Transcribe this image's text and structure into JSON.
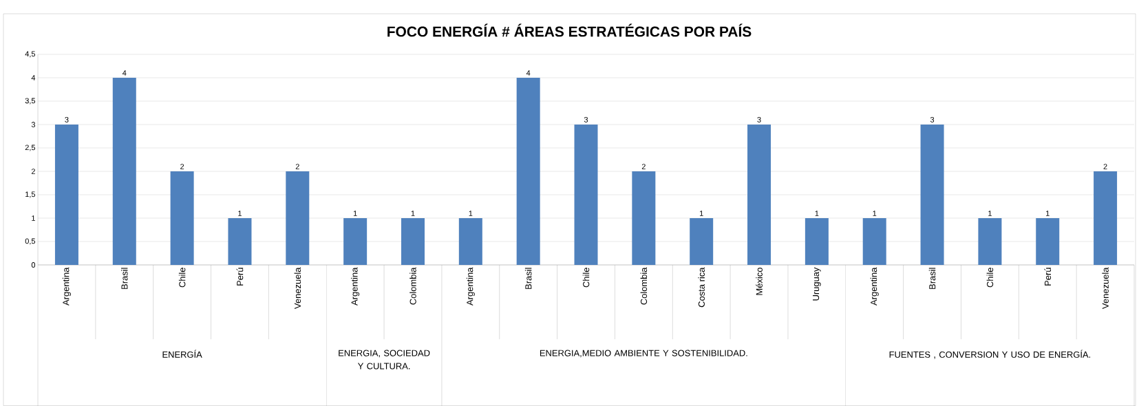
{
  "chart_data": {
    "type": "bar",
    "title": "FOCO ENERGÍA #  ÁREAS ESTRATÉGICAS POR PAÍS",
    "categories": [
      "Argentina",
      "Brasil",
      "Chile",
      "Perú",
      "Venezuela",
      "Argentina",
      "Colombia",
      "Argentina",
      "Brasil",
      "Chile",
      "Colombia",
      "Costa rica",
      "México",
      "Uruguay",
      "Argentina",
      "Brasil",
      "Chile",
      "Perú",
      "Venezuela"
    ],
    "values": [
      3,
      4,
      2,
      1,
      2,
      1,
      1,
      1,
      4,
      3,
      2,
      1,
      3,
      1,
      1,
      3,
      1,
      1,
      2
    ],
    "color": "#4f81bd",
    "ylim": [
      0,
      4.5
    ],
    "yticks": [
      0,
      {
        "value": 0.5,
        "label": "0,5"
      },
      1,
      {
        "value": 1.5,
        "label": "1,5"
      },
      2,
      {
        "value": 2.5,
        "label": "2,5"
      },
      3,
      {
        "value": 3.5,
        "label": "3,5"
      },
      4,
      {
        "value": 4.5,
        "label": "4,5"
      }
    ],
    "grid": "y",
    "data_labels": true,
    "annotations": [
      "ENERGÍA",
      "ENERGIA, SOCIEDAD Y CULTURA.",
      "ENERGIA,MEDIO AMBIENTE Y SOSTENIBILIDAD.",
      "FUENTES , CONVERSION Y USO DE ENERGÍA."
    ]
  }
}
